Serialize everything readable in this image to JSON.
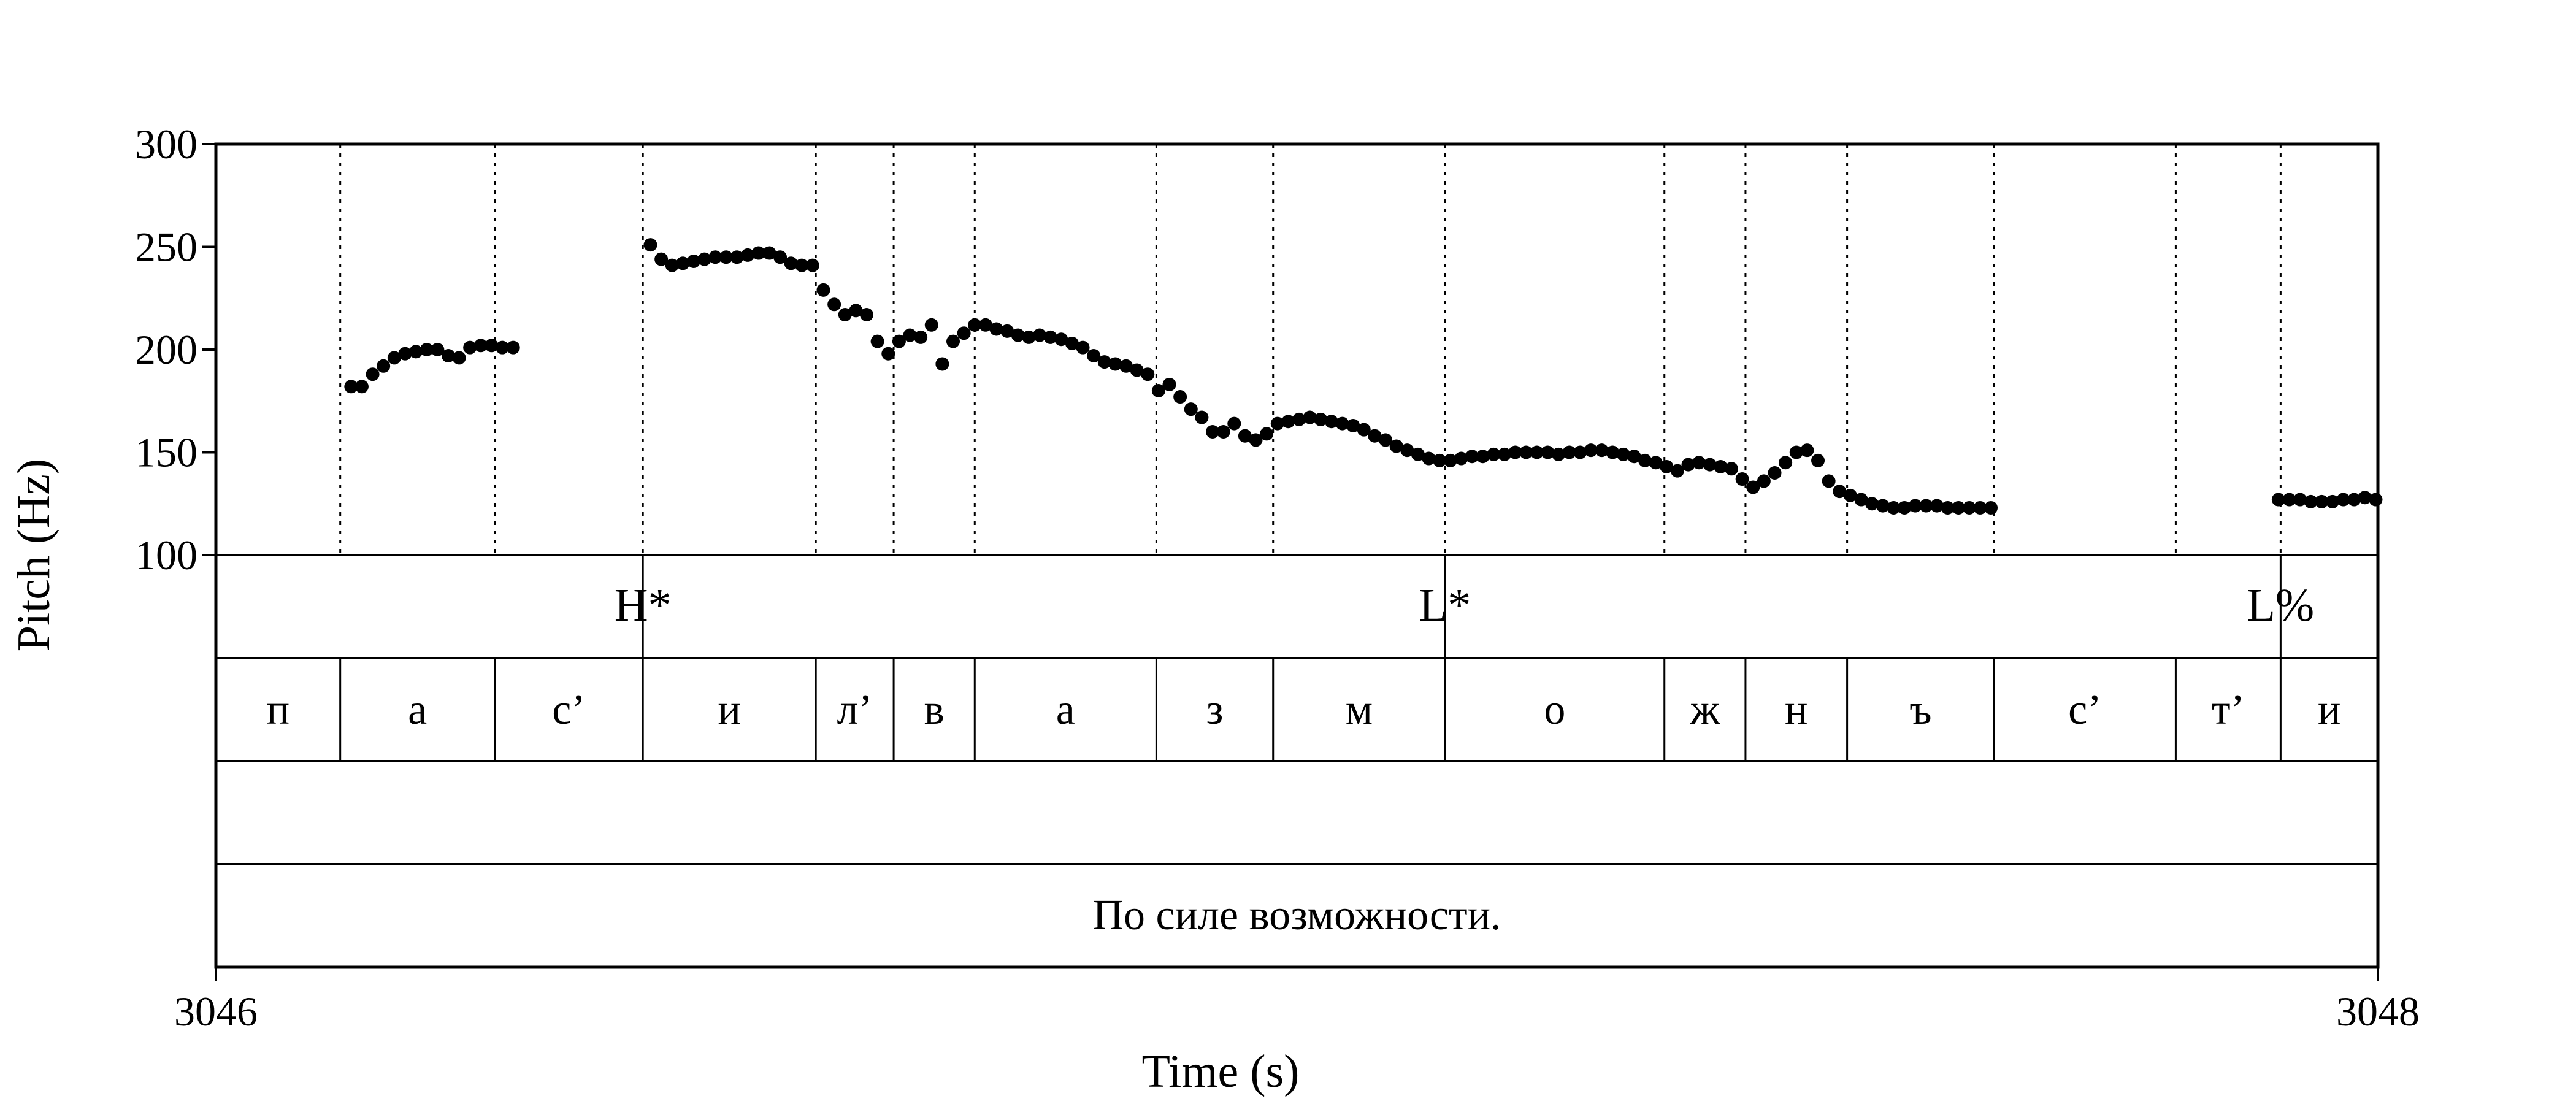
{
  "chart_data": {
    "type": "scatter",
    "xlabel": "Time (s)",
    "ylabel": "Pitch (Hz)",
    "xlim": [
      3046,
      3048
    ],
    "ylim": [
      100,
      300
    ],
    "x_tick_labels": [
      "3046",
      "3048"
    ],
    "y_tick_labels": [
      "100",
      "150",
      "200",
      "250",
      "300"
    ],
    "y_ticks": [
      100,
      150,
      200,
      250,
      300
    ],
    "boundaries": [
      3046.115,
      3046.258,
      3046.395,
      3046.555,
      3046.627,
      3046.702,
      3046.87,
      3046.978,
      3047.137,
      3047.34,
      3047.415,
      3047.509,
      3047.645,
      3047.813,
      3047.91
    ],
    "tones": [
      {
        "time": 3046.395,
        "label": "H*"
      },
      {
        "time": 3047.137,
        "label": "L*"
      },
      {
        "time": 3047.91,
        "label": "L%"
      }
    ],
    "segments": [
      {
        "start": 3046.0,
        "end": 3046.115,
        "label": "п"
      },
      {
        "start": 3046.115,
        "end": 3046.258,
        "label": "а"
      },
      {
        "start": 3046.258,
        "end": 3046.395,
        "label": "с’"
      },
      {
        "start": 3046.395,
        "end": 3046.555,
        "label": "и"
      },
      {
        "start": 3046.555,
        "end": 3046.627,
        "label": "л’"
      },
      {
        "start": 3046.627,
        "end": 3046.702,
        "label": "в"
      },
      {
        "start": 3046.702,
        "end": 3046.87,
        "label": "а"
      },
      {
        "start": 3046.87,
        "end": 3046.978,
        "label": "з"
      },
      {
        "start": 3046.978,
        "end": 3047.137,
        "label": "м"
      },
      {
        "start": 3047.137,
        "end": 3047.34,
        "label": "о"
      },
      {
        "start": 3047.34,
        "end": 3047.415,
        "label": "ж"
      },
      {
        "start": 3047.415,
        "end": 3047.509,
        "label": "н"
      },
      {
        "start": 3047.509,
        "end": 3047.645,
        "label": "ъ"
      },
      {
        "start": 3047.645,
        "end": 3047.813,
        "label": "с’"
      },
      {
        "start": 3047.813,
        "end": 3047.91,
        "label": "т’"
      },
      {
        "start": 3047.91,
        "end": 3048.0,
        "label": "и"
      }
    ],
    "sentence": "По силе возможности.",
    "pitch": [
      [
        3046.125,
        182
      ],
      [
        3046.135,
        182
      ],
      [
        3046.145,
        188
      ],
      [
        3046.155,
        192
      ],
      [
        3046.165,
        196
      ],
      [
        3046.175,
        198
      ],
      [
        3046.185,
        199
      ],
      [
        3046.195,
        200
      ],
      [
        3046.205,
        200
      ],
      [
        3046.215,
        197
      ],
      [
        3046.225,
        196
      ],
      [
        3046.235,
        201
      ],
      [
        3046.245,
        202
      ],
      [
        3046.255,
        202
      ],
      [
        3046.265,
        201
      ],
      [
        3046.275,
        201
      ],
      [
        3046.402,
        251
      ],
      [
        3046.412,
        244
      ],
      [
        3046.422,
        241
      ],
      [
        3046.432,
        242
      ],
      [
        3046.442,
        243
      ],
      [
        3046.452,
        244
      ],
      [
        3046.462,
        245
      ],
      [
        3046.472,
        245
      ],
      [
        3046.482,
        245
      ],
      [
        3046.492,
        246
      ],
      [
        3046.502,
        247
      ],
      [
        3046.512,
        247
      ],
      [
        3046.522,
        245
      ],
      [
        3046.532,
        242
      ],
      [
        3046.542,
        241
      ],
      [
        3046.552,
        241
      ],
      [
        3046.562,
        229
      ],
      [
        3046.572,
        222
      ],
      [
        3046.582,
        217
      ],
      [
        3046.592,
        219
      ],
      [
        3046.602,
        217
      ],
      [
        3046.612,
        204
      ],
      [
        3046.622,
        198
      ],
      [
        3046.632,
        204
      ],
      [
        3046.642,
        207
      ],
      [
        3046.652,
        206
      ],
      [
        3046.662,
        212
      ],
      [
        3046.672,
        193
      ],
      [
        3046.682,
        204
      ],
      [
        3046.692,
        208
      ],
      [
        3046.702,
        212
      ],
      [
        3046.712,
        212
      ],
      [
        3046.722,
        210
      ],
      [
        3046.732,
        209
      ],
      [
        3046.742,
        207
      ],
      [
        3046.752,
        206
      ],
      [
        3046.762,
        207
      ],
      [
        3046.772,
        206
      ],
      [
        3046.782,
        205
      ],
      [
        3046.792,
        203
      ],
      [
        3046.802,
        201
      ],
      [
        3046.812,
        197
      ],
      [
        3046.822,
        194
      ],
      [
        3046.832,
        193
      ],
      [
        3046.842,
        192
      ],
      [
        3046.852,
        190
      ],
      [
        3046.862,
        188
      ],
      [
        3046.872,
        180
      ],
      [
        3046.882,
        183
      ],
      [
        3046.892,
        177
      ],
      [
        3046.902,
        171
      ],
      [
        3046.912,
        167
      ],
      [
        3046.922,
        160
      ],
      [
        3046.932,
        160
      ],
      [
        3046.942,
        164
      ],
      [
        3046.952,
        158
      ],
      [
        3046.962,
        156
      ],
      [
        3046.972,
        159
      ],
      [
        3046.982,
        164
      ],
      [
        3046.992,
        165
      ],
      [
        3047.002,
        166
      ],
      [
        3047.012,
        167
      ],
      [
        3047.022,
        166
      ],
      [
        3047.032,
        165
      ],
      [
        3047.042,
        164
      ],
      [
        3047.052,
        163
      ],
      [
        3047.062,
        161
      ],
      [
        3047.072,
        158
      ],
      [
        3047.082,
        156
      ],
      [
        3047.092,
        153
      ],
      [
        3047.102,
        151
      ],
      [
        3047.112,
        149
      ],
      [
        3047.122,
        147
      ],
      [
        3047.132,
        146
      ],
      [
        3047.142,
        146
      ],
      [
        3047.152,
        147
      ],
      [
        3047.162,
        148
      ],
      [
        3047.172,
        148
      ],
      [
        3047.182,
        149
      ],
      [
        3047.192,
        149
      ],
      [
        3047.202,
        150
      ],
      [
        3047.212,
        150
      ],
      [
        3047.222,
        150
      ],
      [
        3047.232,
        150
      ],
      [
        3047.242,
        149
      ],
      [
        3047.252,
        150
      ],
      [
        3047.262,
        150
      ],
      [
        3047.272,
        151
      ],
      [
        3047.282,
        151
      ],
      [
        3047.292,
        150
      ],
      [
        3047.302,
        149
      ],
      [
        3047.312,
        148
      ],
      [
        3047.322,
        146
      ],
      [
        3047.332,
        145
      ],
      [
        3047.342,
        143
      ],
      [
        3047.352,
        141
      ],
      [
        3047.362,
        144
      ],
      [
        3047.372,
        145
      ],
      [
        3047.382,
        144
      ],
      [
        3047.392,
        143
      ],
      [
        3047.402,
        142
      ],
      [
        3047.412,
        137
      ],
      [
        3047.422,
        133
      ],
      [
        3047.432,
        136
      ],
      [
        3047.442,
        140
      ],
      [
        3047.452,
        145
      ],
      [
        3047.462,
        150
      ],
      [
        3047.472,
        151
      ],
      [
        3047.482,
        146
      ],
      [
        3047.492,
        136
      ],
      [
        3047.502,
        131
      ],
      [
        3047.512,
        129
      ],
      [
        3047.522,
        127
      ],
      [
        3047.532,
        125
      ],
      [
        3047.542,
        124
      ],
      [
        3047.552,
        123
      ],
      [
        3047.562,
        123
      ],
      [
        3047.572,
        124
      ],
      [
        3047.582,
        124
      ],
      [
        3047.592,
        124
      ],
      [
        3047.602,
        123
      ],
      [
        3047.612,
        123
      ],
      [
        3047.622,
        123
      ],
      [
        3047.632,
        123
      ],
      [
        3047.642,
        123
      ],
      [
        3047.908,
        127
      ],
      [
        3047.918,
        127
      ],
      [
        3047.928,
        127
      ],
      [
        3047.938,
        126
      ],
      [
        3047.948,
        126
      ],
      [
        3047.958,
        126
      ],
      [
        3047.968,
        127
      ],
      [
        3047.978,
        127
      ],
      [
        3047.988,
        128
      ],
      [
        3047.998,
        127
      ]
    ]
  }
}
